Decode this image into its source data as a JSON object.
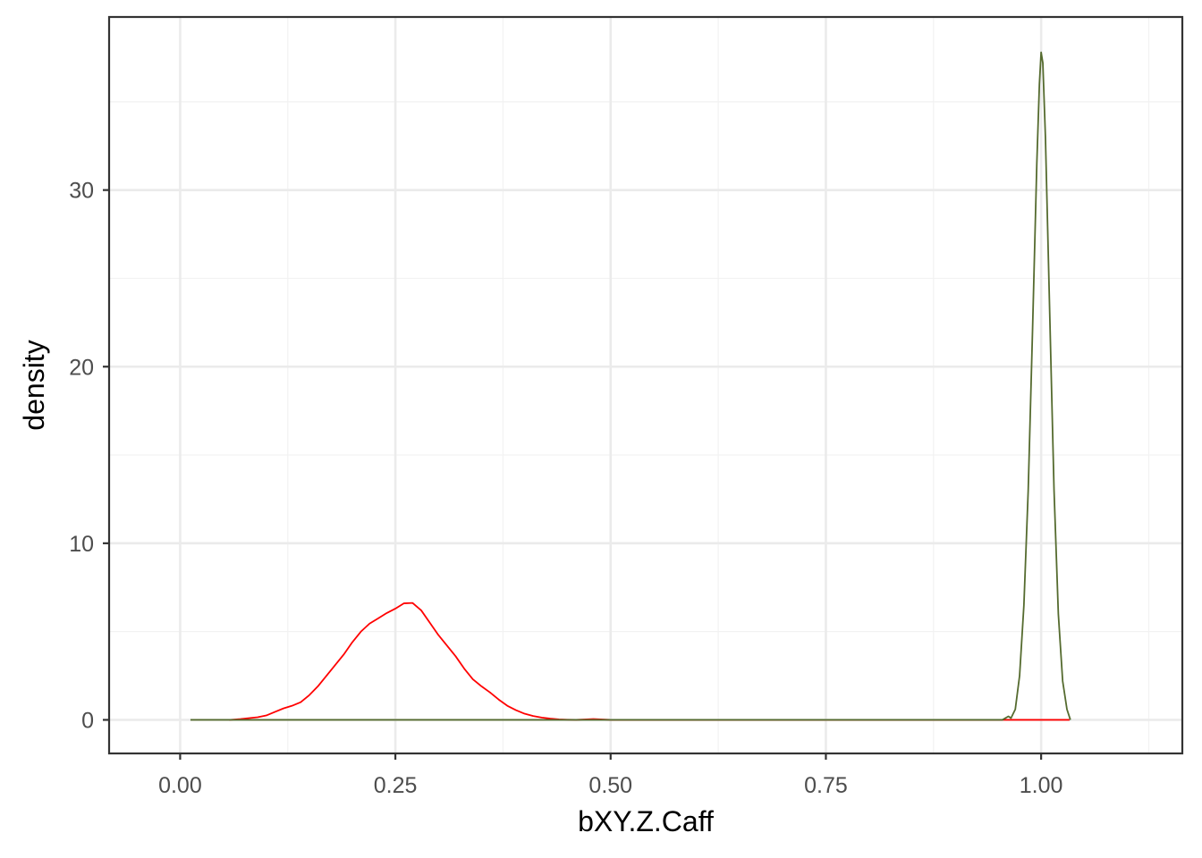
{
  "chart_data": {
    "type": "line",
    "chart_kind": "density",
    "title": "",
    "xlabel": "bXY.Z.Caff",
    "ylabel": "density",
    "xlim": [
      -0.0825,
      1.164
    ],
    "ylim": [
      -1.9,
      39.8
    ],
    "x_ticks": [
      0.0,
      0.25,
      0.5,
      0.75,
      1.0
    ],
    "x_tick_labels": [
      "0.00",
      "0.25",
      "0.50",
      "0.75",
      "1.00"
    ],
    "y_ticks": [
      0,
      10,
      20,
      30
    ],
    "y_tick_labels": [
      "0",
      "10",
      "20",
      "30"
    ],
    "x_minor_ticks": [
      0.125,
      0.375,
      0.625,
      0.875,
      1.125
    ],
    "y_minor_ticks": [
      5,
      15,
      25,
      35
    ],
    "grid": true,
    "legend": "none",
    "theme": "bw",
    "series": [
      {
        "color": "#ff0000",
        "x": [
          0.057,
          0.07,
          0.08,
          0.09,
          0.1,
          0.11,
          0.12,
          0.13,
          0.14,
          0.15,
          0.16,
          0.17,
          0.18,
          0.19,
          0.2,
          0.21,
          0.22,
          0.23,
          0.24,
          0.25,
          0.26,
          0.27,
          0.28,
          0.29,
          0.3,
          0.31,
          0.32,
          0.33,
          0.34,
          0.35,
          0.36,
          0.37,
          0.38,
          0.39,
          0.4,
          0.41,
          0.42,
          0.43,
          0.44,
          0.45,
          0.46,
          0.48,
          0.5,
          0.55,
          0.6,
          0.7,
          0.8,
          0.9,
          0.96,
          0.98,
          1.0,
          1.033
        ],
        "y": [
          0.0,
          0.05,
          0.1,
          0.15,
          0.25,
          0.45,
          0.65,
          0.8,
          1.0,
          1.4,
          1.9,
          2.5,
          3.1,
          3.7,
          4.4,
          5.0,
          5.45,
          5.75,
          6.05,
          6.3,
          6.6,
          6.62,
          6.2,
          5.5,
          4.8,
          4.2,
          3.6,
          2.9,
          2.3,
          1.9,
          1.55,
          1.15,
          0.8,
          0.55,
          0.35,
          0.22,
          0.13,
          0.07,
          0.03,
          0.01,
          0.0,
          0.05,
          0.0,
          0.0,
          0.0,
          0.0,
          0.0,
          0.0,
          0.0,
          0.0,
          0.0,
          0.0
        ]
      },
      {
        "color": "#556b2f",
        "x": [
          0.012,
          0.1,
          0.2,
          0.3,
          0.4,
          0.5,
          0.6,
          0.7,
          0.8,
          0.9,
          0.955,
          0.962,
          0.965,
          0.97,
          0.975,
          0.98,
          0.985,
          0.99,
          0.995,
          0.998,
          1.0,
          1.002,
          1.005,
          1.01,
          1.015,
          1.02,
          1.025,
          1.03,
          1.034
        ],
        "y": [
          0.0,
          0.0,
          0.0,
          0.0,
          0.0,
          0.0,
          0.0,
          0.0,
          0.0,
          0.0,
          0.0,
          0.2,
          0.1,
          0.6,
          2.5,
          6.5,
          13.0,
          22.0,
          31.5,
          36.0,
          37.8,
          37.2,
          33.0,
          23.0,
          13.0,
          6.0,
          2.2,
          0.6,
          0.0
        ]
      }
    ]
  }
}
